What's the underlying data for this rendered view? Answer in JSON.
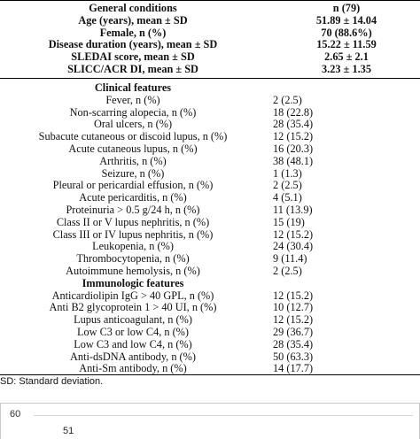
{
  "table": {
    "header": [
      {
        "label": "General conditions",
        "value": "n (79)"
      },
      {
        "label": "Age (years), mean ± SD",
        "value": "51.89 ± 14.04"
      },
      {
        "label": "Female, n (%)",
        "value": "70 (88.6%)"
      },
      {
        "label": "Disease duration (years), mean ± SD",
        "value": "15.22 ± 11.59"
      },
      {
        "label": "SLEDAI score, mean ± SD",
        "value": "2.65 ± 2.1"
      },
      {
        "label": "SLICC/ACR DI, mean ± SD",
        "value": "3.23 ± 1.35"
      }
    ],
    "clinical_title": "Clinical features",
    "clinical": [
      {
        "label": "Fever, n (%)",
        "value": "2 (2.5)"
      },
      {
        "label": "Non-scarring alopecia, n (%)",
        "value": "18 (22.8)"
      },
      {
        "label": "Oral ulcers, n (%)",
        "value": "28 (35.4)"
      },
      {
        "label": "Subacute cutaneous or discoid lupus, n (%)",
        "value": "12 (15.2)"
      },
      {
        "label": "Acute cutaneous lupus, n (%)",
        "value": "16 (20.3)"
      },
      {
        "label": "Arthritis, n (%)",
        "value": "38 (48.1)"
      },
      {
        "label": "Seizure, n (%)",
        "value": "1 (1.3)"
      },
      {
        "label": "Pleural or pericardial effusion, n (%)",
        "value": "2 (2.5)"
      },
      {
        "label": "Acute pericarditis, n (%)",
        "value": "4 (5.1)"
      },
      {
        "label": "Proteinuria > 0.5 g/24 h, n (%)",
        "value": "11 (13.9)"
      },
      {
        "label": "Class II or V lupus nephritis, n (%)",
        "value": "15 (19)"
      },
      {
        "label": "Class III or IV lupus nephritis, n (%)",
        "value": "12 (15.2)"
      },
      {
        "label": "Leukopenia, n (%)",
        "value": "24 (30.4)"
      },
      {
        "label": "Thrombocytopenia, n (%)",
        "value": "9 (11.4)"
      },
      {
        "label": "Autoimmune hemolysis, n (%)",
        "value": "2 (2.5)"
      }
    ],
    "immuno_title": "Immunologic features",
    "immuno": [
      {
        "label": "Anticardiolipin IgG > 40 GPL, n (%)",
        "value": "12 (15.2)"
      },
      {
        "label": "Anti B2 glycoprotein 1 > 40 UI, n (%)",
        "value": "10 (12.7)"
      },
      {
        "label": "Lupus anticoagulant, n (%)",
        "value": "12 (15.2)"
      },
      {
        "label": "Low C3 or low C4, n (%)",
        "value": "29 (36.7)"
      },
      {
        "label": "Low C3 and low C4, n (%)",
        "value": "28 (35.4)"
      },
      {
        "label": "Anti-dsDNA antibody, n (%)",
        "value": "50 (63.3)"
      },
      {
        "label": "Anti-Sm antibody, n (%)",
        "value": "14 (17.7)"
      }
    ],
    "footnote": "SD: Standard deviation."
  },
  "chart_data": {
    "type": "bar",
    "title": "",
    "ylabel": "",
    "xlabel": "",
    "ytick_visible": "60",
    "data_label_visible": "51"
  }
}
